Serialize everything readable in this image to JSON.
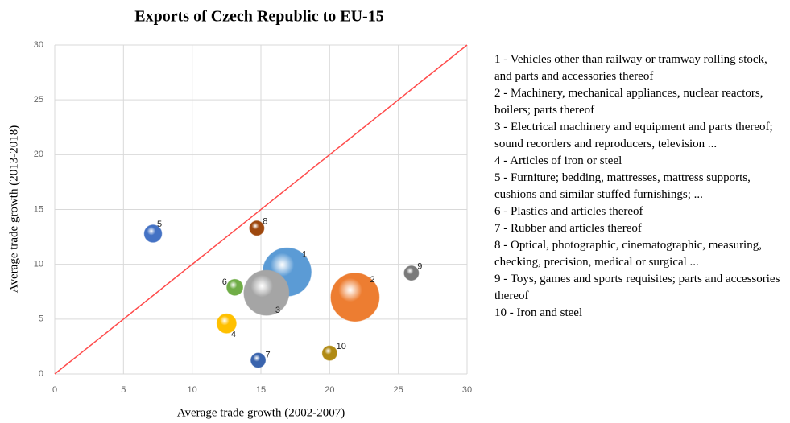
{
  "chart_data": {
    "type": "bubble",
    "title": "Exports of Czech Republic to EU-15",
    "x_label": "Average trade growth (2002-2007)",
    "y_label": "Average trade growth (2013-2018)",
    "categories": [
      "1",
      "2",
      "3",
      "4",
      "5",
      "6",
      "7",
      "8",
      "9",
      "10"
    ],
    "x": [
      16.9,
      21.85,
      15.4,
      12.5,
      7.15,
      13.1,
      14.8,
      14.7,
      25.95,
      20.0
    ],
    "values": [
      9.3,
      7.0,
      7.4,
      4.6,
      12.8,
      7.9,
      1.25,
      13.3,
      9.2,
      1.9
    ],
    "sizes": [
      100,
      100,
      87,
      16,
      13,
      11,
      9,
      9,
      9,
      9
    ],
    "colors": [
      "#5b9bd5",
      "#ed7d31",
      "#a5a5a5",
      "#ffc000",
      "#4472c4",
      "#70ad47",
      "#3a64ad",
      "#9e480e",
      "#7a7a7a",
      "#b08a14"
    ],
    "xlim": [
      0,
      30
    ],
    "ylim": [
      0,
      30
    ],
    "xticks": [
      0,
      5,
      10,
      15,
      20,
      25,
      30
    ],
    "yticks": [
      0,
      5,
      10,
      15,
      20,
      25,
      30
    ],
    "grid": true,
    "diagonal_color": "#ff4b4b",
    "notes": [
      "1 - Vehicles other than railway or tramway rolling stock, and parts and accessories thereof",
      "2 - Machinery, mechanical appliances, nuclear reactors, boilers; parts thereof",
      "3 - Electrical machinery and equipment and parts thereof; sound recorders and reproducers, television ...",
      "4 - Articles of iron or steel",
      "5 - Furniture; bedding, mattresses, mattress supports, cushions and similar stuffed furnishings; ...",
      "6 - Plastics and articles thereof",
      "7 - Rubber and articles thereof",
      "8 - Optical, photographic, cinematographic, measuring, checking, precision, medical or surgical ...",
      "9 - Toys, games and sports requisites; parts and accessories thereof",
      "10 - Iron and steel"
    ]
  }
}
